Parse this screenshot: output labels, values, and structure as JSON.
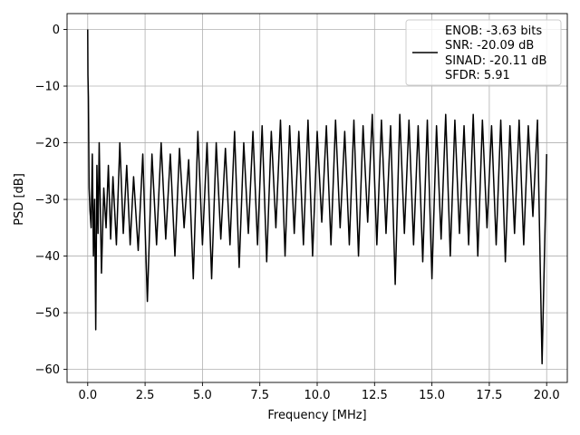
{
  "chart_data": {
    "type": "line",
    "title": "",
    "xlabel": "Frequency [MHz]",
    "ylabel": "PSD [dB]",
    "xlim": [
      -0.9,
      20.9
    ],
    "ylim": [
      -62.3,
      2.8
    ],
    "xticks": [
      0.0,
      2.5,
      5.0,
      7.5,
      10.0,
      12.5,
      15.0,
      17.5,
      20.0
    ],
    "xtick_labels": [
      "0.0",
      "2.5",
      "5.0",
      "7.5",
      "10.0",
      "12.5",
      "15.0",
      "17.5",
      "20.0"
    ],
    "yticks": [
      0,
      -10,
      -20,
      -30,
      -40,
      -50,
      -60
    ],
    "ytick_labels": [
      "0",
      "−10",
      "−20",
      "−30",
      "−40",
      "−50",
      "−60"
    ],
    "grid": true,
    "legend_position": "top-right",
    "legend_lines": [
      "ENOB: -3.63 bits",
      "SNR: -20.09 dB",
      "SINAD: -20.11 dB",
      "SFDR: 5.91"
    ],
    "series": [
      {
        "color": "#000000",
        "points_mhz": [
          0.0,
          0.01,
          0.03,
          0.06,
          0.1,
          0.15,
          0.2,
          0.25,
          0.3,
          0.35,
          0.4,
          0.45,
          0.5,
          0.6,
          0.7,
          0.8,
          0.9,
          1.0,
          1.1,
          1.25,
          1.4,
          1.55,
          1.7,
          1.85,
          2.0,
          2.2,
          2.4,
          2.6,
          2.8,
          3.0,
          3.2,
          3.4,
          3.6,
          3.8,
          4.0,
          4.2,
          4.4,
          4.6,
          4.8,
          5.0,
          5.2,
          5.4,
          5.6,
          5.8,
          6.0,
          6.2,
          6.4,
          6.6,
          6.8,
          7.0,
          7.2,
          7.4,
          7.6,
          7.8,
          8.0,
          8.2,
          8.4,
          8.6,
          8.8,
          9.0,
          9.2,
          9.4,
          9.6,
          9.8,
          10.0,
          10.2,
          10.4,
          10.6,
          10.8,
          11.0,
          11.2,
          11.4,
          11.6,
          11.8,
          12.0,
          12.2,
          12.4,
          12.6,
          12.8,
          13.0,
          13.2,
          13.4,
          13.6,
          13.8,
          14.0,
          14.2,
          14.4,
          14.6,
          14.8,
          15.0,
          15.2,
          15.4,
          15.6,
          15.8,
          16.0,
          16.2,
          16.4,
          16.6,
          16.8,
          17.0,
          17.2,
          17.4,
          17.6,
          17.8,
          18.0,
          18.2,
          18.4,
          18.6,
          18.8,
          19.0,
          19.2,
          19.4,
          19.6,
          19.8,
          20.0
        ],
        "psd_db": [
          0.0,
          -8.0,
          -12.0,
          -28.0,
          -32.0,
          -35.0,
          -22.0,
          -40.0,
          -30.0,
          -53.0,
          -24.0,
          -36.0,
          -20.0,
          -43.0,
          -28.0,
          -35.0,
          -24.0,
          -37.0,
          -26.0,
          -38.0,
          -20.0,
          -36.0,
          -24.0,
          -38.0,
          -26.0,
          -39.0,
          -22.0,
          -48.0,
          -22.0,
          -38.0,
          -20.0,
          -37.0,
          -22.0,
          -40.0,
          -21.0,
          -35.0,
          -23.0,
          -44.0,
          -18.0,
          -38.0,
          -20.0,
          -44.0,
          -20.0,
          -37.0,
          -21.0,
          -38.0,
          -18.0,
          -42.0,
          -20.0,
          -36.0,
          -18.0,
          -38.0,
          -17.0,
          -41.0,
          -18.0,
          -35.0,
          -16.0,
          -40.0,
          -17.0,
          -36.0,
          -18.0,
          -38.0,
          -16.0,
          -40.0,
          -18.0,
          -34.0,
          -17.0,
          -38.0,
          -16.0,
          -35.0,
          -18.0,
          -38.0,
          -16.0,
          -40.0,
          -17.0,
          -34.0,
          -15.0,
          -38.0,
          -16.0,
          -36.0,
          -17.0,
          -45.0,
          -15.0,
          -36.0,
          -16.0,
          -38.0,
          -17.0,
          -41.0,
          -16.0,
          -44.0,
          -17.0,
          -37.0,
          -15.0,
          -40.0,
          -16.0,
          -36.0,
          -17.0,
          -38.0,
          -15.0,
          -40.0,
          -16.0,
          -35.0,
          -17.0,
          -38.0,
          -16.0,
          -41.0,
          -17.0,
          -36.0,
          -16.0,
          -38.0,
          -17.0,
          -33.0,
          -16.0,
          -59.0,
          -22.0
        ]
      }
    ]
  }
}
